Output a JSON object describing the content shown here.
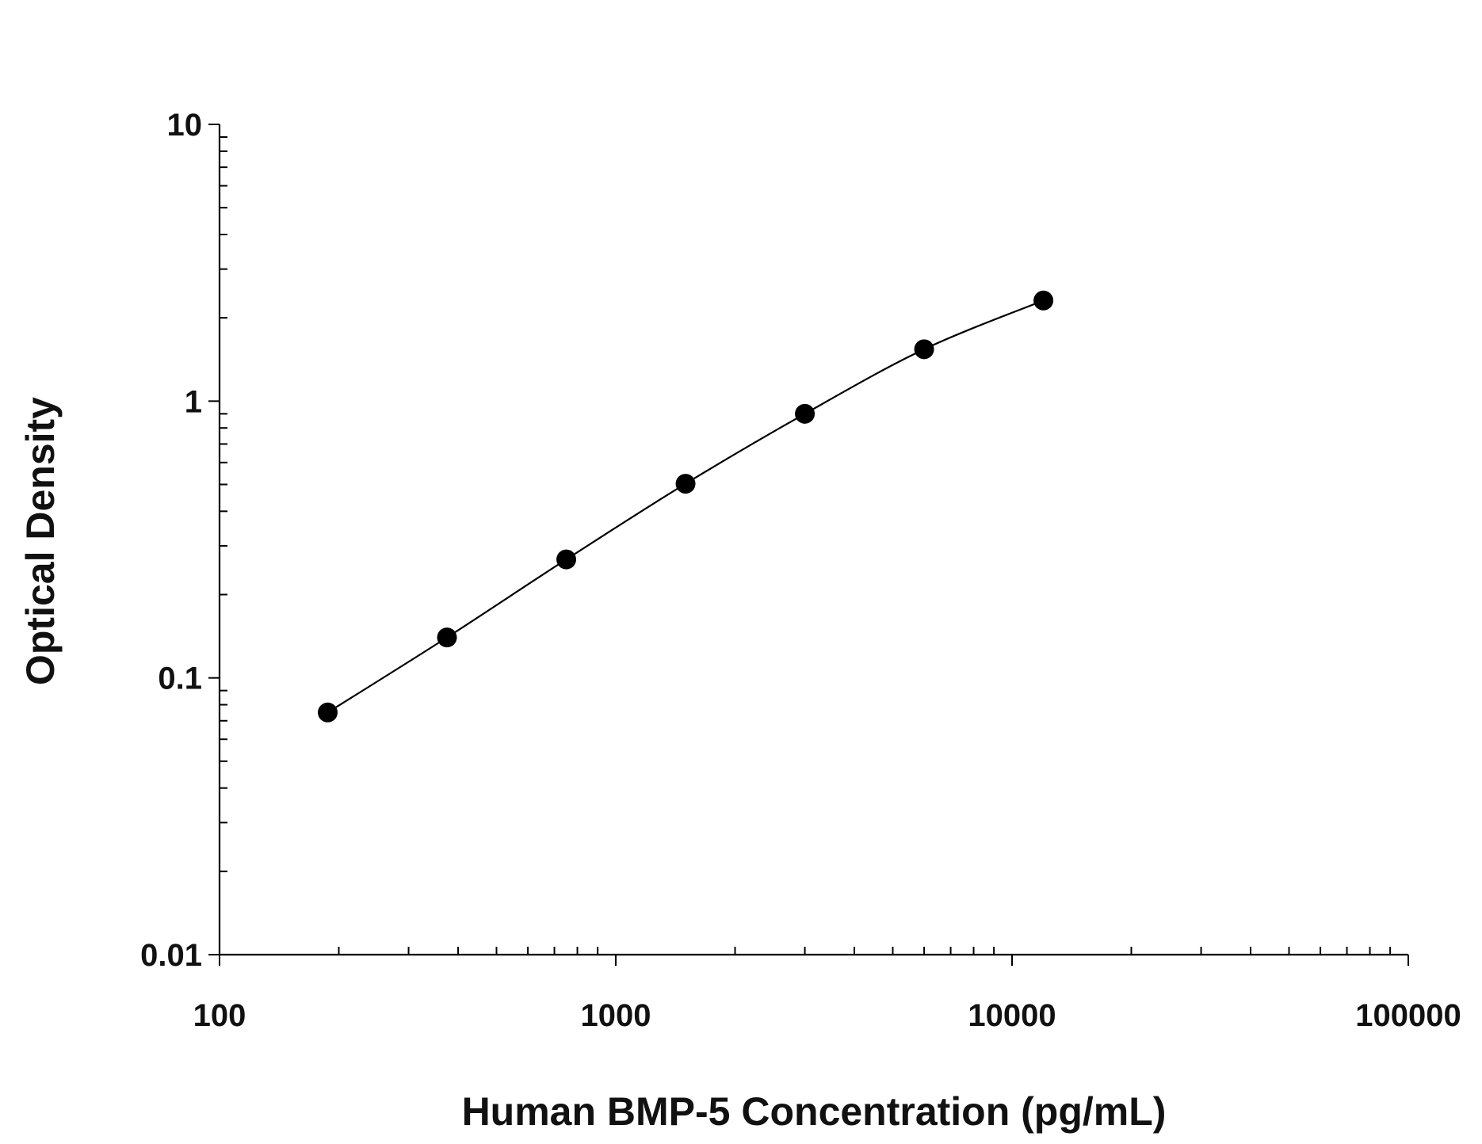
{
  "chart_data": {
    "type": "scatter",
    "title": "",
    "xlabel": "Human BMP-5 Concentration (pg/mL)",
    "ylabel": "Optical Density",
    "xscale": "log",
    "yscale": "log",
    "xlim": [
      100,
      100000
    ],
    "ylim": [
      0.01,
      10
    ],
    "xticks": [
      "100",
      "1000",
      "10000",
      "100000"
    ],
    "yticks": [
      "0.01",
      "0.1",
      "1",
      "10"
    ],
    "grid": false,
    "fit_line": true,
    "marker_color": "#000000",
    "series": [
      {
        "x": [
          187.5,
          375,
          750,
          1500,
          3000,
          6000,
          12000
        ],
        "y": [
          0.075,
          0.14,
          0.268,
          0.503,
          0.9,
          1.54,
          2.31
        ]
      }
    ]
  }
}
